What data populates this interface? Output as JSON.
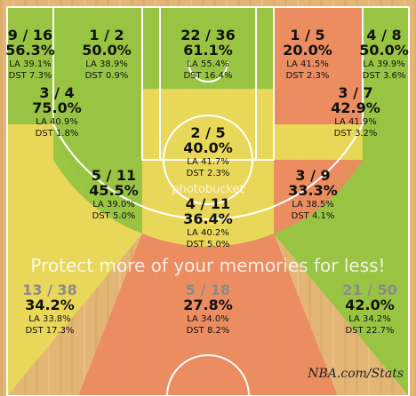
{
  "chart_data": {
    "type": "shot-chart",
    "zones": [
      {
        "id": "left-corner-3",
        "made": 9,
        "att": 16,
        "fraction": "9 / 16",
        "pct": "56.3%",
        "la": "LA 39.1%",
        "dst": "DST 7.3%",
        "color": "#93c53f"
      },
      {
        "id": "left-baseline-mid",
        "made": 1,
        "att": 2,
        "fraction": "1 / 2",
        "pct": "50.0%",
        "la": "LA 38.9%",
        "dst": "DST 0.9%",
        "color": "#93c53f"
      },
      {
        "id": "restricted-area",
        "made": 22,
        "att": 36,
        "fraction": "22 / 36",
        "pct": "61.1%",
        "la": "LA 55.4%",
        "dst": "DST 16.4%",
        "color": "#93c53f"
      },
      {
        "id": "right-baseline-mid",
        "made": 1,
        "att": 5,
        "fraction": "1 / 5",
        "pct": "20.0%",
        "la": "LA 41.5%",
        "dst": "DST 2.3%",
        "color": "#ec8a5e"
      },
      {
        "id": "right-corner-3",
        "made": 4,
        "att": 8,
        "fraction": "4 / 8",
        "pct": "50.0%",
        "la": "LA 39.9%",
        "dst": "DST 3.6%",
        "color": "#93c53f"
      },
      {
        "id": "left-elbow-mid",
        "made": 3,
        "att": 4,
        "fraction": "3 / 4",
        "pct": "75.0%",
        "la": "LA 40.9%",
        "dst": "DST 1.8%",
        "color": "#93c53f"
      },
      {
        "id": "paint-non-ra",
        "made": 2,
        "att": 5,
        "fraction": "2 / 5",
        "pct": "40.0%",
        "la": "LA 41.7%",
        "dst": "DST 2.3%",
        "color": "#e9da57"
      },
      {
        "id": "right-elbow-mid",
        "made": 3,
        "att": 7,
        "fraction": "3 / 7",
        "pct": "42.9%",
        "la": "LA 41.9%",
        "dst": "DST 3.2%",
        "color": "#e9da57"
      },
      {
        "id": "left-wing-mid",
        "made": 5,
        "att": 11,
        "fraction": "5 / 11",
        "pct": "45.5%",
        "la": "LA 39.0%",
        "dst": "DST 5.0%",
        "color": "#93c53f"
      },
      {
        "id": "top-key-mid",
        "made": 4,
        "att": 11,
        "fraction": "4 / 11",
        "pct": "36.4%",
        "la": "LA 40.2%",
        "dst": "DST 5.0%",
        "color": "#e9da57"
      },
      {
        "id": "right-wing-mid",
        "made": 3,
        "att": 9,
        "fraction": "3 / 9",
        "pct": "33.3%",
        "la": "LA 38.5%",
        "dst": "DST 4.1%",
        "color": "#ec8a5e"
      },
      {
        "id": "left-wing-3",
        "made": 13,
        "att": 38,
        "fraction": "13 / 38",
        "pct": "34.2%",
        "la": "LA 33.8%",
        "dst": "DST 17.3%",
        "color": "#e9da57"
      },
      {
        "id": "top-key-3",
        "made": 5,
        "att": 18,
        "fraction": "5 / 18",
        "pct": "27.8%",
        "la": "LA 34.0%",
        "dst": "DST 8.2%",
        "color": "#ec8a5e"
      },
      {
        "id": "right-wing-3",
        "made": 21,
        "att": 50,
        "fraction": "21 / 50",
        "pct": "42.0%",
        "la": "LA 34.2%",
        "dst": "DST 22.7%",
        "color": "#93c53f"
      }
    ]
  },
  "colors": {
    "court_wood": "#e6b97b",
    "line": "#ffffff",
    "green": "#93c53f",
    "yellow": "#e9da57",
    "orange": "#ec8a5e"
  },
  "watermark": {
    "small": "photobucket",
    "big": "Protect more of your memories for less!"
  },
  "credit": "NBA.com/Stats"
}
